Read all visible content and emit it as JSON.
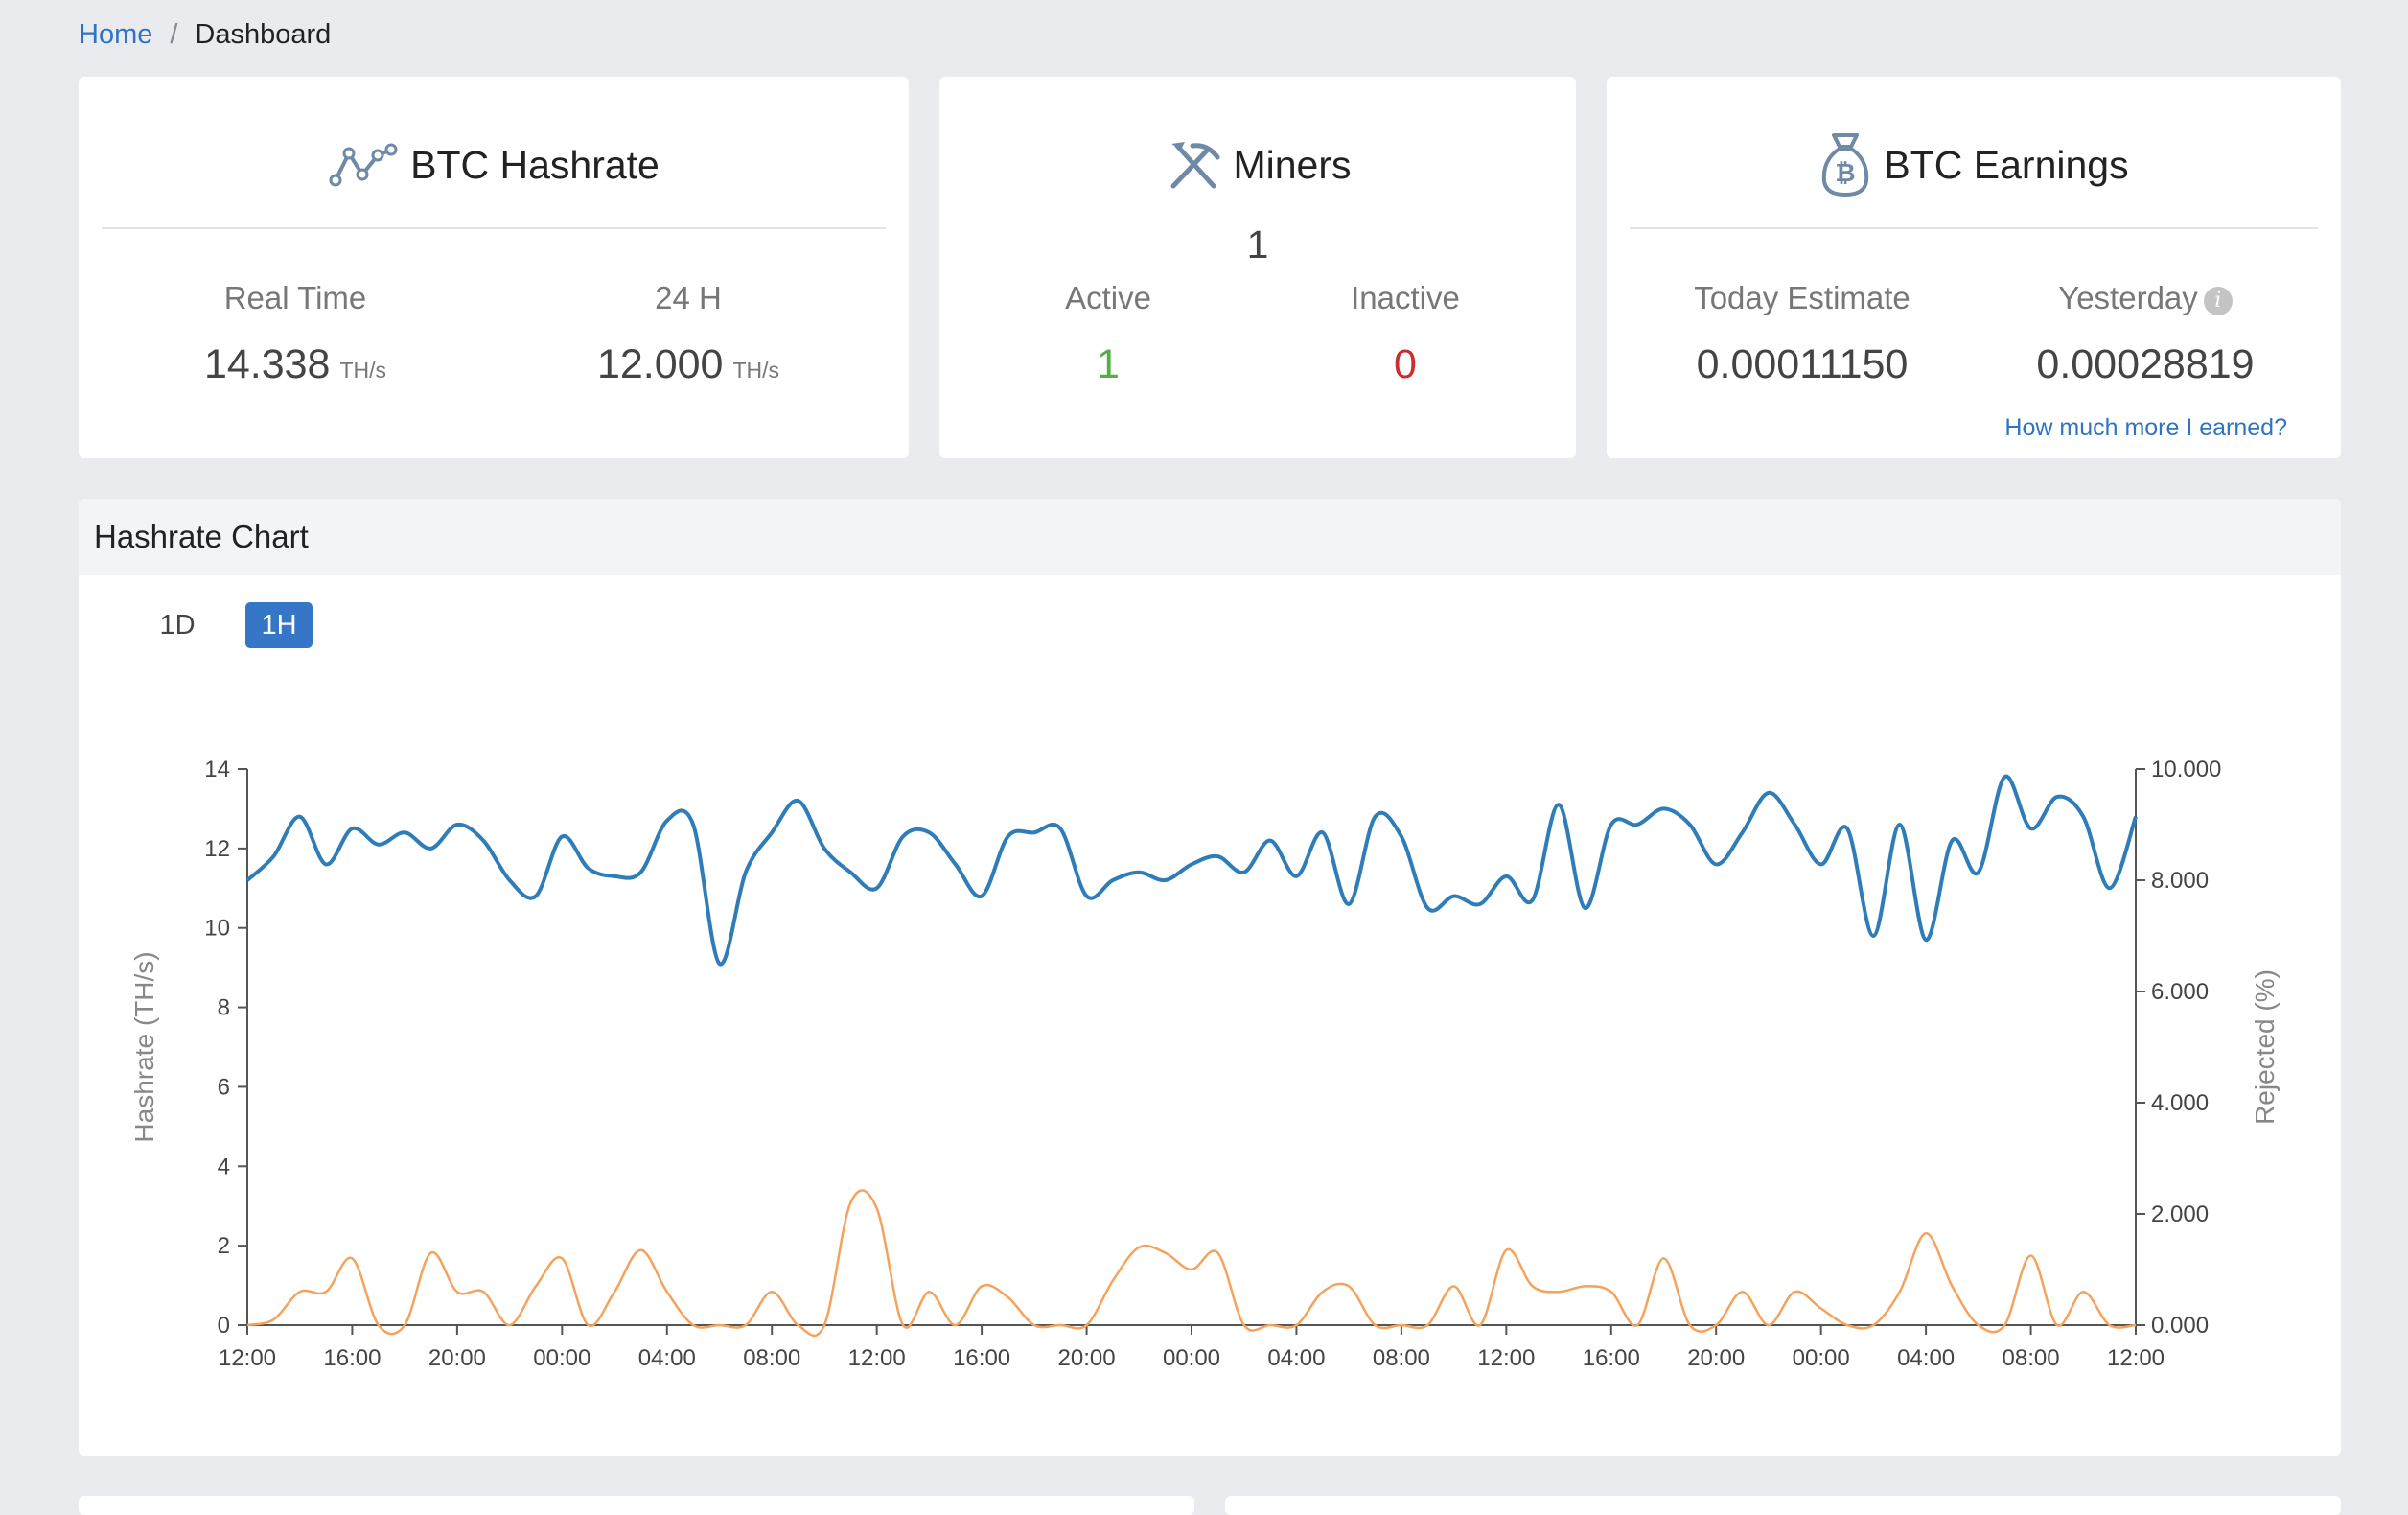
{
  "breadcrumb": {
    "home": "Home",
    "separator": "/",
    "current": "Dashboard"
  },
  "cards": {
    "hashrate": {
      "title": "BTC Hashrate",
      "icon": "line-chart-icon",
      "realtime_label": "Real Time",
      "realtime_value": "14.338",
      "realtime_unit": "TH/s",
      "h24_label": "24 H",
      "h24_value": "12.000",
      "h24_unit": "TH/s"
    },
    "miners": {
      "title": "Miners",
      "icon": "pickaxe-icon",
      "total": "1",
      "active_label": "Active",
      "active_value": "1",
      "inactive_label": "Inactive",
      "inactive_value": "0"
    },
    "earnings": {
      "title": "BTC Earnings",
      "icon": "bitcoin-bag-icon",
      "today_label": "Today Estimate",
      "today_value": "0.00011150",
      "yesterday_label": "Yesterday",
      "yesterday_value": "0.00028819",
      "link": "How much more I earned?"
    }
  },
  "chart_panel": {
    "title": "Hashrate Chart",
    "ranges": [
      "1D",
      "1H"
    ],
    "selected_range": "1H"
  },
  "colors": {
    "hashrate": "#2f7db8",
    "rejected": "#f5a35c",
    "accent": "#3577c6",
    "active": "#52b043",
    "inactive": "#c9302c"
  },
  "chart_data": {
    "type": "line",
    "title": "",
    "ylabel": "Hashrate (TH/s)",
    "y2label": "Rejected (%)",
    "ylim": [
      0,
      14
    ],
    "yticks": [
      "0",
      "2",
      "4",
      "6",
      "8",
      "10",
      "12",
      "14"
    ],
    "y2lim": [
      0,
      10
    ],
    "y2ticks": [
      "0.000",
      "2.000",
      "4.000",
      "6.000",
      "8.000",
      "10.000"
    ],
    "xticks": [
      "12:00",
      "16:00",
      "20:00",
      "00:00",
      "04:00",
      "08:00",
      "12:00",
      "16:00",
      "20:00",
      "00:00",
      "04:00",
      "08:00",
      "12:00",
      "16:00",
      "20:00",
      "00:00",
      "04:00",
      "08:00",
      "12:00"
    ],
    "x_hours": [
      0,
      1,
      2,
      3,
      4,
      5,
      6,
      7,
      8,
      9,
      10,
      11,
      12,
      13,
      14,
      15,
      16,
      17,
      18,
      19,
      20,
      21,
      22,
      23,
      24,
      25,
      26,
      27,
      28,
      29,
      30,
      31,
      32,
      33,
      34,
      35,
      36,
      37,
      38,
      39,
      40,
      41,
      42,
      43,
      44,
      45,
      46,
      47,
      48,
      49,
      50,
      51,
      52,
      53,
      54,
      55,
      56,
      57,
      58,
      59,
      60,
      61,
      62,
      63,
      64,
      65,
      66,
      67,
      68,
      69,
      70,
      71,
      72
    ],
    "series": [
      {
        "name": "Hashrate",
        "axis": "left",
        "values": [
          11.2,
          11.8,
          12.8,
          11.6,
          12.5,
          12.1,
          12.4,
          12.0,
          12.6,
          12.2,
          11.2,
          10.8,
          12.3,
          11.5,
          11.3,
          11.4,
          12.7,
          12.6,
          9.1,
          11.4,
          12.4,
          13.2,
          12.0,
          11.4,
          11.0,
          12.3,
          12.4,
          11.6,
          10.8,
          12.3,
          12.4,
          12.5,
          10.8,
          11.2,
          11.4,
          11.2,
          11.6,
          11.8,
          11.4,
          12.2,
          11.3,
          12.4,
          10.6,
          12.8,
          12.3,
          10.5,
          10.8,
          10.6,
          11.3,
          10.7,
          13.1,
          10.5,
          12.6,
          12.6,
          13.0,
          12.6,
          11.6,
          12.4,
          13.4,
          12.6,
          11.6,
          12.5,
          9.8,
          12.6,
          9.7,
          12.2,
          11.4,
          13.8,
          12.5,
          13.3,
          12.8,
          11.0,
          12.8
        ]
      },
      {
        "name": "Rejected",
        "axis": "right",
        "values": [
          0.0,
          0.1,
          0.6,
          0.6,
          1.2,
          0.0,
          0.0,
          1.3,
          0.6,
          0.6,
          0.0,
          0.7,
          1.2,
          0.0,
          0.6,
          1.35,
          0.6,
          0.0,
          0.0,
          0.0,
          0.6,
          0.0,
          0.0,
          2.2,
          2.1,
          0.0,
          0.6,
          0.0,
          0.7,
          0.5,
          0.0,
          0.0,
          0.0,
          0.8,
          1.4,
          1.3,
          1.0,
          1.3,
          0.0,
          0.0,
          0.0,
          0.6,
          0.7,
          0.0,
          0.0,
          0.0,
          0.7,
          0.0,
          1.35,
          0.7,
          0.6,
          0.7,
          0.6,
          0.0,
          1.2,
          0.0,
          0.0,
          0.6,
          0.0,
          0.6,
          0.3,
          0.0,
          0.0,
          0.6,
          1.65,
          0.7,
          0.0,
          0.0,
          1.25,
          0.0,
          0.6,
          0.0,
          0.0
        ]
      }
    ]
  }
}
